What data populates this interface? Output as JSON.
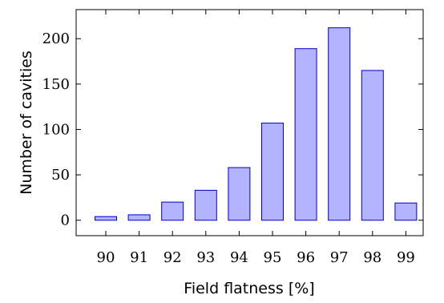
{
  "chart_data": {
    "type": "bar",
    "title": "",
    "xlabel": "Field flatness [%]",
    "ylabel": "Number of cavities",
    "categories": [
      "90",
      "91",
      "92",
      "93",
      "94",
      "95",
      "96",
      "97",
      "98",
      "99"
    ],
    "values": [
      4,
      6,
      20,
      33,
      58,
      107,
      189,
      212,
      165,
      19
    ],
    "ylim": [
      -17,
      232
    ],
    "yticks": [
      0,
      50,
      100,
      150,
      200
    ],
    "grid": false,
    "legend": "none",
    "colors": {
      "bar_fill": "#b3b3ff",
      "bar_stroke": "#0000cc",
      "axis": "#000000"
    }
  }
}
